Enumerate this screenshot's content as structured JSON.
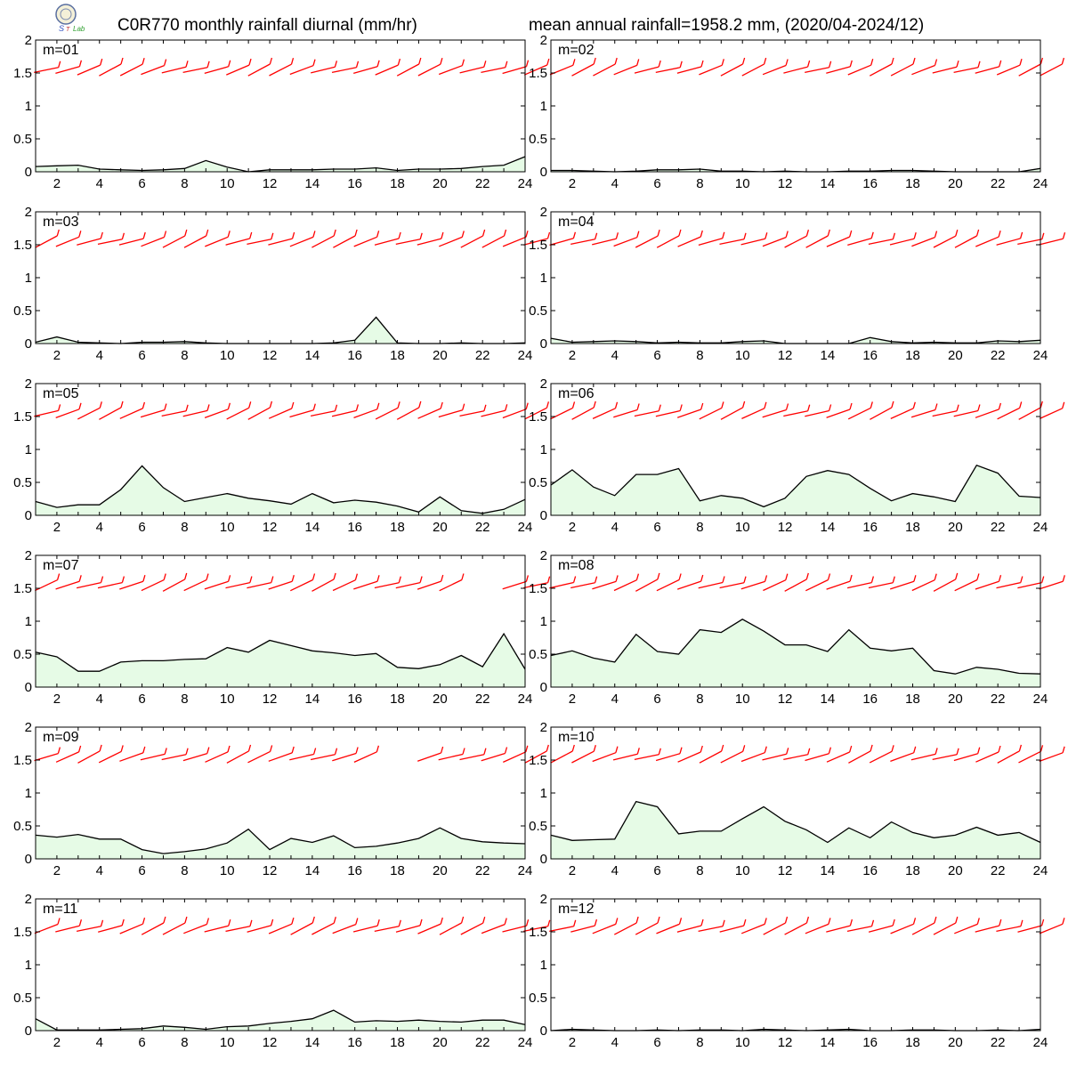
{
  "header": {
    "title_left": "C0R770 monthly rainfall diurnal (mm/hr)",
    "title_right": "mean annual rainfall=1958.2 mm, (2020/04-2024/12)",
    "logo_icon": "lab-seal-logo"
  },
  "colors": {
    "fill": "#e6fbe6",
    "line": "#000000",
    "wind": "#ff0000"
  },
  "chart_data": {
    "type": "area",
    "x": [
      1,
      2,
      3,
      4,
      5,
      6,
      7,
      8,
      9,
      10,
      11,
      12,
      13,
      14,
      15,
      16,
      17,
      18,
      19,
      20,
      21,
      22,
      23,
      24
    ],
    "xlim": [
      1,
      24
    ],
    "ylim": [
      0,
      2
    ],
    "xticks": [
      "2",
      "4",
      "6",
      "8",
      "10",
      "12",
      "14",
      "16",
      "18",
      "20",
      "22",
      "24"
    ],
    "yticks": [
      "0",
      "0.5",
      "1",
      "1.5",
      "2"
    ],
    "wind_barbs_shown_at_y": 1.6,
    "panels": [
      {
        "label": "m=01",
        "values": [
          0.08,
          0.09,
          0.1,
          0.04,
          0.03,
          0.02,
          0.03,
          0.05,
          0.17,
          0.07,
          0.0,
          0.03,
          0.03,
          0.03,
          0.04,
          0.04,
          0.06,
          0.02,
          0.04,
          0.04,
          0.05,
          0.08,
          0.1,
          0.23
        ]
      },
      {
        "label": "m=02",
        "values": [
          0.02,
          0.02,
          0.01,
          0.0,
          0.01,
          0.03,
          0.03,
          0.04,
          0.01,
          0.01,
          0.0,
          0.01,
          0.0,
          0.0,
          0.01,
          0.01,
          0.02,
          0.02,
          0.01,
          0.0,
          0.0,
          0.0,
          0.0,
          0.05
        ]
      },
      {
        "label": "m=03",
        "values": [
          0.02,
          0.1,
          0.02,
          0.01,
          0.0,
          0.02,
          0.02,
          0.03,
          0.01,
          0.0,
          0.0,
          0.0,
          0.0,
          0.0,
          0.01,
          0.05,
          0.4,
          0.01,
          0.0,
          0.0,
          0.01,
          0.0,
          0.0,
          0.01
        ]
      },
      {
        "label": "m=04",
        "values": [
          0.08,
          0.02,
          0.03,
          0.04,
          0.03,
          0.01,
          0.02,
          0.01,
          0.01,
          0.03,
          0.04,
          0.0,
          0.0,
          0.0,
          0.0,
          0.09,
          0.03,
          0.01,
          0.02,
          0.01,
          0.01,
          0.04,
          0.03,
          0.05
        ]
      },
      {
        "label": "m=05",
        "values": [
          0.21,
          0.12,
          0.16,
          0.16,
          0.39,
          0.75,
          0.42,
          0.21,
          0.27,
          0.33,
          0.26,
          0.22,
          0.17,
          0.33,
          0.19,
          0.23,
          0.2,
          0.14,
          0.05,
          0.28,
          0.07,
          0.03,
          0.09,
          0.24
        ]
      },
      {
        "label": "m=06",
        "values": [
          0.46,
          0.69,
          0.43,
          0.3,
          0.62,
          0.62,
          0.71,
          0.22,
          0.3,
          0.26,
          0.13,
          0.26,
          0.59,
          0.68,
          0.62,
          0.41,
          0.22,
          0.33,
          0.28,
          0.21,
          0.76,
          0.64,
          0.29,
          0.27
        ]
      },
      {
        "label": "m=07",
        "values": [
          0.53,
          0.46,
          0.24,
          0.24,
          0.38,
          0.4,
          0.4,
          0.42,
          0.43,
          0.6,
          0.53,
          0.71,
          0.63,
          0.55,
          0.52,
          0.48,
          0.51,
          0.3,
          0.28,
          0.34,
          0.48,
          0.31,
          0.81,
          0.27
        ]
      },
      {
        "label": "m=08",
        "values": [
          0.48,
          0.55,
          0.44,
          0.38,
          0.8,
          0.54,
          0.5,
          0.87,
          0.83,
          1.03,
          0.85,
          0.64,
          0.64,
          0.54,
          0.87,
          0.59,
          0.55,
          0.59,
          0.25,
          0.2,
          0.3,
          0.27,
          0.21,
          0.2
        ]
      },
      {
        "label": "m=09",
        "values": [
          0.36,
          0.33,
          0.37,
          0.3,
          0.3,
          0.14,
          0.08,
          0.11,
          0.15,
          0.24,
          0.45,
          0.14,
          0.31,
          0.25,
          0.35,
          0.17,
          0.19,
          0.24,
          0.31,
          0.47,
          0.31,
          0.26,
          0.24,
          0.23
        ]
      },
      {
        "label": "m=10",
        "values": [
          0.36,
          0.28,
          0.29,
          0.3,
          0.87,
          0.79,
          0.38,
          0.42,
          0.42,
          0.61,
          0.79,
          0.57,
          0.44,
          0.25,
          0.47,
          0.32,
          0.56,
          0.4,
          0.32,
          0.36,
          0.48,
          0.36,
          0.4,
          0.25
        ]
      },
      {
        "label": "m=11",
        "values": [
          0.18,
          0.01,
          0.01,
          0.01,
          0.02,
          0.03,
          0.07,
          0.05,
          0.02,
          0.06,
          0.07,
          0.11,
          0.14,
          0.18,
          0.31,
          0.13,
          0.15,
          0.14,
          0.16,
          0.14,
          0.13,
          0.16,
          0.16,
          0.09
        ]
      },
      {
        "label": "m=12",
        "values": [
          0.0,
          0.02,
          0.01,
          0.0,
          0.0,
          0.01,
          0.0,
          0.01,
          0.01,
          0.0,
          0.02,
          0.01,
          0.0,
          0.01,
          0.02,
          0.0,
          0.0,
          0.01,
          0.01,
          0.0,
          0.0,
          0.01,
          0.0,
          0.02
        ]
      }
    ]
  }
}
